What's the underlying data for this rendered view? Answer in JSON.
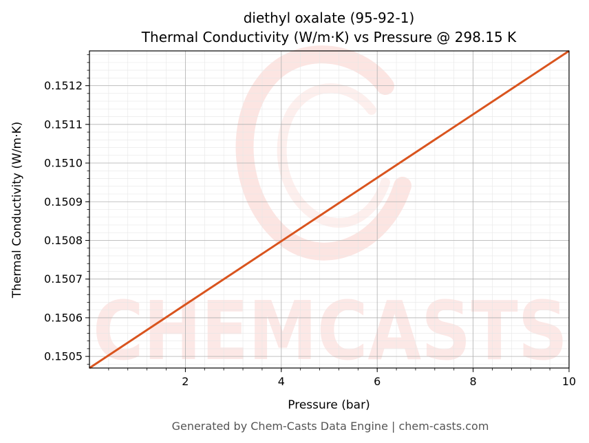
{
  "chart_data": {
    "type": "line",
    "title": "diethyl oxalate (95-92-1)",
    "subtitle": "Thermal Conductivity (W/m·K) vs Pressure @ 298.15 K",
    "xlabel": "Pressure (bar)",
    "ylabel": "Thermal Conductivity (W/m·K)",
    "xlim": [
      0.0,
      10.0
    ],
    "ylim": [
      0.15047,
      0.15129
    ],
    "xticks": [
      2,
      4,
      6,
      8,
      10
    ],
    "xtick_labels": [
      "2",
      "4",
      "6",
      "8",
      "10"
    ],
    "yticks": [
      0.1505,
      0.1506,
      0.1507,
      0.1508,
      0.1509,
      0.151,
      0.1511,
      0.1512
    ],
    "ytick_labels": [
      "0.1505",
      "0.1506",
      "0.1507",
      "0.1508",
      "0.1509",
      "0.1510",
      "0.1511",
      "0.1512"
    ],
    "grid": true,
    "series": [
      {
        "x": [
          0.0,
          10.0
        ],
        "y": [
          0.15047,
          0.15129
        ],
        "color": "#d9541e"
      }
    ]
  },
  "watermark_text": "CHEMCASTS",
  "footer": "Generated by Chem-Casts Data Engine | chem-casts.com"
}
